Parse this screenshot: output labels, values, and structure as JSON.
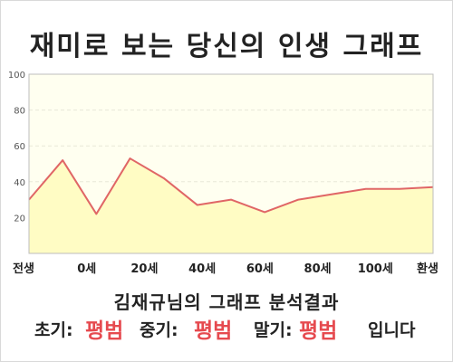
{
  "title": "재미로 보는 당신의 인생 그래프",
  "subtitle": "김재규님의 그래프 분석결과",
  "result": {
    "early_label": "초기:",
    "early_value": "평범",
    "mid_label": "중기:",
    "mid_value": "평범",
    "late_label": "말기:",
    "late_value": "평범",
    "suffix": "입니다"
  },
  "colors": {
    "line": "#e06666",
    "fill": "#fffcc4",
    "plot_bg": "#fffff0",
    "accent": "#e64a4f"
  },
  "chart_data": {
    "type": "area",
    "title": "",
    "xlabel": "",
    "ylabel": "",
    "ylim": [
      0,
      100
    ],
    "y_ticks": [
      100,
      80,
      60,
      40,
      20
    ],
    "x_tick_labels": [
      "전생",
      "0세",
      "20세",
      "40세",
      "60세",
      "80세",
      "100세",
      "환생"
    ],
    "grid": true,
    "legend": "none",
    "series": [
      {
        "values": [
          30,
          52,
          22,
          53,
          42,
          27,
          30,
          23,
          30,
          33,
          36,
          36,
          37
        ]
      }
    ]
  }
}
